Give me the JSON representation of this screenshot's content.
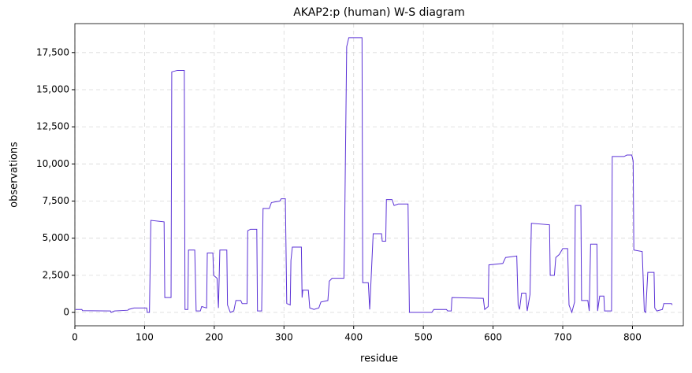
{
  "chart_data": {
    "type": "line",
    "title": "AKAP2:p (human) W-S diagram",
    "x_label": "residue",
    "y_label": "observations",
    "x": [
      1,
      10,
      11,
      51,
      52,
      57,
      76,
      77,
      85,
      103,
      104,
      107,
      109,
      128,
      129,
      138,
      139,
      147,
      157,
      158,
      162,
      163,
      172,
      174,
      180,
      182,
      189,
      190,
      198,
      199,
      204,
      206,
      208,
      218,
      219,
      223,
      228,
      231,
      238,
      240,
      247,
      248,
      252,
      261,
      262,
      268,
      270,
      279,
      282,
      294,
      296,
      302,
      304,
      309,
      310,
      312,
      325,
      326,
      327,
      335,
      337,
      343,
      350,
      353,
      363,
      365,
      369,
      386,
      387,
      390,
      393,
      412,
      413,
      421,
      423,
      428,
      440,
      441,
      446,
      447,
      455,
      458,
      464,
      478,
      480,
      512,
      515,
      533,
      535,
      540,
      541,
      586,
      588,
      593,
      594,
      614,
      618,
      634,
      636,
      638,
      641,
      647,
      649,
      653,
      655,
      681,
      682,
      688,
      690,
      695,
      700,
      707,
      709,
      713,
      717,
      718,
      726,
      727,
      736,
      738,
      740,
      749,
      750,
      753,
      759,
      760,
      770,
      771,
      788,
      792,
      799,
      801,
      802,
      814,
      817,
      819,
      822,
      831,
      832,
      835,
      843,
      845,
      856,
      857
    ],
    "series": [
      {
        "name": "observations",
        "color": "#5b32d6",
        "values": [
          200,
          200,
          120,
          100,
          0,
          100,
          150,
          200,
          300,
          300,
          0,
          0,
          6200,
          6100,
          1000,
          1000,
          16200,
          16300,
          16300,
          200,
          200,
          4200,
          4200,
          100,
          100,
          400,
          300,
          4000,
          4000,
          2500,
          2300,
          300,
          4200,
          4200,
          500,
          0,
          100,
          800,
          800,
          600,
          600,
          5500,
          5600,
          5600,
          100,
          100,
          7000,
          7000,
          7400,
          7500,
          7650,
          7650,
          600,
          500,
          3500,
          4400,
          4400,
          1000,
          1500,
          1500,
          300,
          200,
          300,
          700,
          800,
          2100,
          2300,
          2300,
          5400,
          17900,
          18500,
          18500,
          2000,
          2000,
          200,
          5300,
          5300,
          4800,
          4800,
          7600,
          7600,
          7200,
          7300,
          7300,
          0,
          0,
          200,
          200,
          100,
          100,
          1000,
          950,
          200,
          400,
          3200,
          3300,
          3700,
          3800,
          500,
          200,
          1300,
          1300,
          100,
          1200,
          6000,
          5900,
          2500,
          2500,
          3700,
          3900,
          4300,
          4300,
          500,
          0,
          700,
          7200,
          7200,
          800,
          800,
          100,
          4600,
          4600,
          100,
          1100,
          1100,
          100,
          100,
          10500,
          10500,
          10600,
          10600,
          10200,
          4200,
          4100,
          100,
          0,
          2700,
          2700,
          300,
          100,
          200,
          600,
          600,
          500
        ]
      }
    ],
    "xlim": [
      0,
      873
    ],
    "ylim": [
      -900,
      19450
    ],
    "xticks": [
      0,
      100,
      200,
      300,
      400,
      500,
      600,
      700,
      800
    ],
    "yticks": [
      0,
      {
        "value": 2500,
        "label": "2,500"
      },
      {
        "value": 5000,
        "label": "5,000"
      },
      {
        "value": 7500,
        "label": "7,500"
      },
      {
        "value": 10000,
        "label": "10,000"
      },
      {
        "value": 12500,
        "label": "12,500"
      },
      {
        "value": 15000,
        "label": "15,000"
      },
      {
        "value": 17500,
        "label": "17,500"
      }
    ],
    "grid": true
  }
}
